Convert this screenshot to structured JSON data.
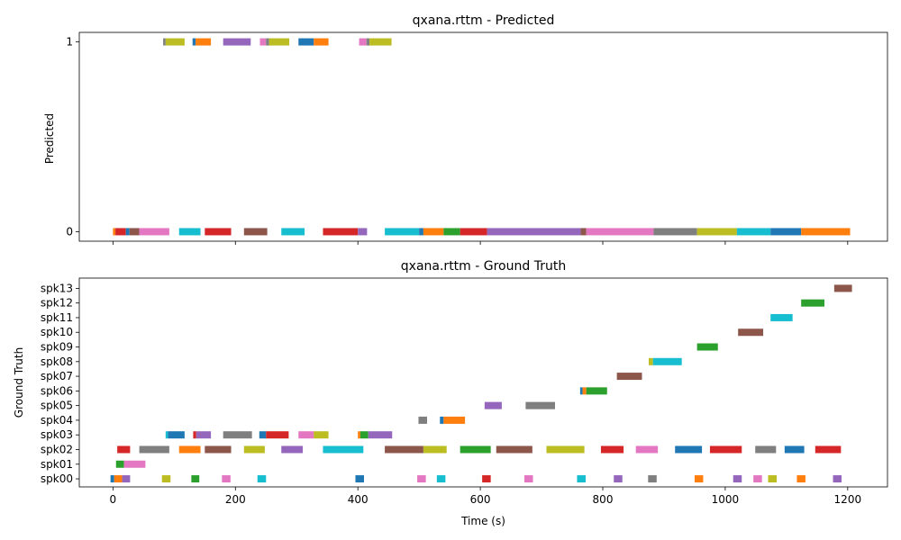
{
  "colors": [
    "#1f77b4",
    "#ff7f0e",
    "#2ca02c",
    "#d62728",
    "#9467bd",
    "#8c564b",
    "#e377c2",
    "#7f7f7f",
    "#bcbd22",
    "#17becf"
  ],
  "chart_data": [
    {
      "type": "timeline",
      "title": "qxana.rttm - Predicted",
      "ylabel": "Predicted",
      "xlim": [
        -55,
        1265
      ],
      "ylim": [
        -0.05,
        1.05
      ],
      "xticks": [
        0,
        200,
        400,
        600,
        800,
        1000,
        1200
      ],
      "xtick_labels_visible": false,
      "yticks": [
        0,
        1
      ],
      "ytick_labels": [
        "0",
        "1"
      ],
      "segments": [
        {
          "y": 1,
          "start": 82,
          "end": 86,
          "c": 7
        },
        {
          "y": 1,
          "start": 86,
          "end": 117,
          "c": 8
        },
        {
          "y": 1,
          "start": 130,
          "end": 135,
          "c": 0
        },
        {
          "y": 1,
          "start": 135,
          "end": 160,
          "c": 1
        },
        {
          "y": 1,
          "start": 180,
          "end": 225,
          "c": 4
        },
        {
          "y": 1,
          "start": 240,
          "end": 250,
          "c": 6
        },
        {
          "y": 1,
          "start": 250,
          "end": 255,
          "c": 7
        },
        {
          "y": 1,
          "start": 255,
          "end": 288,
          "c": 8
        },
        {
          "y": 1,
          "start": 303,
          "end": 328,
          "c": 0
        },
        {
          "y": 1,
          "start": 328,
          "end": 352,
          "c": 1
        },
        {
          "y": 1,
          "start": 402,
          "end": 414,
          "c": 6
        },
        {
          "y": 1,
          "start": 414,
          "end": 419,
          "c": 7
        },
        {
          "y": 1,
          "start": 419,
          "end": 455,
          "c": 8
        },
        {
          "y": 0,
          "start": 0,
          "end": 4,
          "c": 1
        },
        {
          "y": 0,
          "start": 4,
          "end": 21,
          "c": 3
        },
        {
          "y": 0,
          "start": 21,
          "end": 27,
          "c": 0
        },
        {
          "y": 0,
          "start": 27,
          "end": 43,
          "c": 5
        },
        {
          "y": 0,
          "start": 43,
          "end": 92,
          "c": 6
        },
        {
          "y": 0,
          "start": 108,
          "end": 143,
          "c": 9
        },
        {
          "y": 0,
          "start": 150,
          "end": 193,
          "c": 3
        },
        {
          "y": 0,
          "start": 214,
          "end": 252,
          "c": 5
        },
        {
          "y": 0,
          "start": 275,
          "end": 313,
          "c": 9
        },
        {
          "y": 0,
          "start": 343,
          "end": 400,
          "c": 3
        },
        {
          "y": 0,
          "start": 400,
          "end": 415,
          "c": 4
        },
        {
          "y": 0,
          "start": 444,
          "end": 500,
          "c": 9
        },
        {
          "y": 0,
          "start": 500,
          "end": 507,
          "c": 0
        },
        {
          "y": 0,
          "start": 507,
          "end": 540,
          "c": 1
        },
        {
          "y": 0,
          "start": 540,
          "end": 567,
          "c": 2
        },
        {
          "y": 0,
          "start": 567,
          "end": 611,
          "c": 3
        },
        {
          "y": 0,
          "start": 611,
          "end": 764,
          "c": 4
        },
        {
          "y": 0,
          "start": 764,
          "end": 773,
          "c": 5
        },
        {
          "y": 0,
          "start": 773,
          "end": 883,
          "c": 6
        },
        {
          "y": 0,
          "start": 883,
          "end": 954,
          "c": 7
        },
        {
          "y": 0,
          "start": 954,
          "end": 1019,
          "c": 8
        },
        {
          "y": 0,
          "start": 1019,
          "end": 1074,
          "c": 9
        },
        {
          "y": 0,
          "start": 1074,
          "end": 1124,
          "c": 0
        },
        {
          "y": 0,
          "start": 1124,
          "end": 1204,
          "c": 1
        }
      ]
    },
    {
      "type": "timeline",
      "title": "qxana.rttm - Ground Truth",
      "ylabel": "Ground Truth",
      "xlabel": "Time (s)",
      "xlim": [
        -55,
        1265
      ],
      "ylim": [
        -0.55,
        13.7
      ],
      "xticks": [
        0,
        200,
        400,
        600,
        800,
        1000,
        1200
      ],
      "xtick_labels": [
        "0",
        "200",
        "400",
        "600",
        "800",
        "1000",
        "1200"
      ],
      "yticks": [
        0,
        1,
        2,
        3,
        4,
        5,
        6,
        7,
        8,
        9,
        10,
        11,
        12,
        13
      ],
      "ytick_labels": [
        "spk00",
        "spk01",
        "spk02",
        "spk03",
        "spk04",
        "spk05",
        "spk06",
        "spk07",
        "spk08",
        "spk09",
        "spk10",
        "spk11",
        "spk12",
        "spk13"
      ],
      "segments": [
        {
          "y": 0,
          "start": -4,
          "end": 2,
          "c": 0
        },
        {
          "y": 0,
          "start": 2,
          "end": 15,
          "c": 1
        },
        {
          "y": 0,
          "start": 15,
          "end": 28,
          "c": 4
        },
        {
          "y": 0,
          "start": 80,
          "end": 94,
          "c": 8
        },
        {
          "y": 0,
          "start": 128,
          "end": 141,
          "c": 2
        },
        {
          "y": 0,
          "start": 178,
          "end": 192,
          "c": 6
        },
        {
          "y": 0,
          "start": 236,
          "end": 250,
          "c": 9
        },
        {
          "y": 0,
          "start": 396,
          "end": 410,
          "c": 0
        },
        {
          "y": 0,
          "start": 497,
          "end": 511,
          "c": 6
        },
        {
          "y": 0,
          "start": 529,
          "end": 543,
          "c": 9
        },
        {
          "y": 0,
          "start": 603,
          "end": 617,
          "c": 3
        },
        {
          "y": 0,
          "start": 672,
          "end": 686,
          "c": 6
        },
        {
          "y": 0,
          "start": 758,
          "end": 772,
          "c": 9
        },
        {
          "y": 0,
          "start": 818,
          "end": 832,
          "c": 4
        },
        {
          "y": 0,
          "start": 874,
          "end": 888,
          "c": 7
        },
        {
          "y": 0,
          "start": 950,
          "end": 964,
          "c": 1
        },
        {
          "y": 0,
          "start": 1013,
          "end": 1027,
          "c": 4
        },
        {
          "y": 0,
          "start": 1046,
          "end": 1060,
          "c": 6
        },
        {
          "y": 0,
          "start": 1070,
          "end": 1084,
          "c": 8
        },
        {
          "y": 0,
          "start": 1117,
          "end": 1131,
          "c": 1
        },
        {
          "y": 0,
          "start": 1176,
          "end": 1190,
          "c": 4
        },
        {
          "y": 1,
          "start": 5,
          "end": 18,
          "c": 2
        },
        {
          "y": 1,
          "start": 18,
          "end": 53,
          "c": 6
        },
        {
          "y": 2,
          "start": 7,
          "end": 28,
          "c": 3
        },
        {
          "y": 2,
          "start": 43,
          "end": 92,
          "c": 7
        },
        {
          "y": 2,
          "start": 108,
          "end": 143,
          "c": 1
        },
        {
          "y": 2,
          "start": 150,
          "end": 193,
          "c": 5
        },
        {
          "y": 2,
          "start": 214,
          "end": 248,
          "c": 8
        },
        {
          "y": 2,
          "start": 275,
          "end": 310,
          "c": 4
        },
        {
          "y": 2,
          "start": 343,
          "end": 409,
          "c": 9
        },
        {
          "y": 2,
          "start": 444,
          "end": 507,
          "c": 5
        },
        {
          "y": 2,
          "start": 507,
          "end": 545,
          "c": 8
        },
        {
          "y": 2,
          "start": 567,
          "end": 617,
          "c": 2
        },
        {
          "y": 2,
          "start": 626,
          "end": 685,
          "c": 5
        },
        {
          "y": 2,
          "start": 708,
          "end": 770,
          "c": 8
        },
        {
          "y": 2,
          "start": 797,
          "end": 834,
          "c": 3
        },
        {
          "y": 2,
          "start": 854,
          "end": 890,
          "c": 6
        },
        {
          "y": 2,
          "start": 918,
          "end": 962,
          "c": 0
        },
        {
          "y": 2,
          "start": 975,
          "end": 1027,
          "c": 3
        },
        {
          "y": 2,
          "start": 1049,
          "end": 1083,
          "c": 7
        },
        {
          "y": 2,
          "start": 1097,
          "end": 1129,
          "c": 0
        },
        {
          "y": 2,
          "start": 1147,
          "end": 1189,
          "c": 3
        },
        {
          "y": 3,
          "start": 86,
          "end": 90,
          "c": 9
        },
        {
          "y": 3,
          "start": 90,
          "end": 117,
          "c": 0
        },
        {
          "y": 3,
          "start": 131,
          "end": 136,
          "c": 3
        },
        {
          "y": 3,
          "start": 136,
          "end": 160,
          "c": 4
        },
        {
          "y": 3,
          "start": 180,
          "end": 227,
          "c": 7
        },
        {
          "y": 3,
          "start": 239,
          "end": 250,
          "c": 0
        },
        {
          "y": 3,
          "start": 250,
          "end": 287,
          "c": 3
        },
        {
          "y": 3,
          "start": 303,
          "end": 328,
          "c": 6
        },
        {
          "y": 3,
          "start": 328,
          "end": 352,
          "c": 8
        },
        {
          "y": 3,
          "start": 400,
          "end": 404,
          "c": 1
        },
        {
          "y": 3,
          "start": 404,
          "end": 417,
          "c": 2
        },
        {
          "y": 3,
          "start": 417,
          "end": 456,
          "c": 4
        },
        {
          "y": 4,
          "start": 499,
          "end": 513,
          "c": 7
        },
        {
          "y": 4,
          "start": 534,
          "end": 540,
          "c": 0
        },
        {
          "y": 4,
          "start": 540,
          "end": 575,
          "c": 1
        },
        {
          "y": 5,
          "start": 607,
          "end": 635,
          "c": 4
        },
        {
          "y": 5,
          "start": 674,
          "end": 722,
          "c": 7
        },
        {
          "y": 6,
          "start": 763,
          "end": 767,
          "c": 0
        },
        {
          "y": 6,
          "start": 767,
          "end": 773,
          "c": 1
        },
        {
          "y": 6,
          "start": 773,
          "end": 807,
          "c": 2
        },
        {
          "y": 7,
          "start": 823,
          "end": 864,
          "c": 5
        },
        {
          "y": 8,
          "start": 875,
          "end": 882,
          "c": 8
        },
        {
          "y": 8,
          "start": 882,
          "end": 929,
          "c": 9
        },
        {
          "y": 9,
          "start": 954,
          "end": 988,
          "c": 2
        },
        {
          "y": 10,
          "start": 1021,
          "end": 1062,
          "c": 5
        },
        {
          "y": 11,
          "start": 1074,
          "end": 1110,
          "c": 9
        },
        {
          "y": 12,
          "start": 1124,
          "end": 1162,
          "c": 2
        },
        {
          "y": 13,
          "start": 1178,
          "end": 1207,
          "c": 5
        }
      ]
    }
  ]
}
